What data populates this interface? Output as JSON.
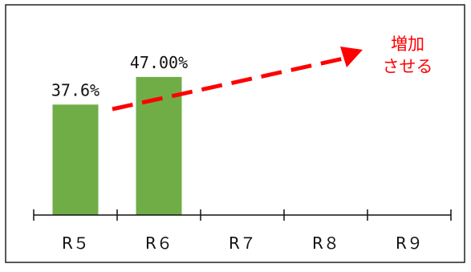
{
  "chart_data": {
    "type": "bar",
    "categories": [
      "R５",
      "R６",
      "R７",
      "R８",
      "R９"
    ],
    "values": [
      37.6,
      47.0,
      null,
      null,
      null
    ],
    "data_labels": [
      "37.6%",
      "47.00%",
      "",
      "",
      ""
    ],
    "xlabel": "",
    "ylabel": "",
    "ylim": [
      0,
      65
    ],
    "grid": false,
    "legend": "none",
    "bar_color": "#70ad47",
    "annotation": {
      "line1": "増加",
      "line2": "させる",
      "color": "#ff0000"
    }
  }
}
